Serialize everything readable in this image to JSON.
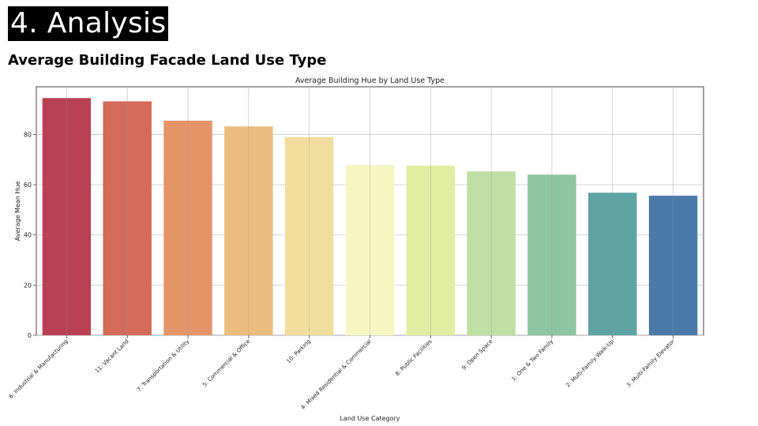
{
  "slide": {
    "title": "4. Analysis",
    "subtitle": "Average Building Facade Land Use Type"
  },
  "chart_data": {
    "type": "bar",
    "title": "Average Building Hue by Land Use Type",
    "xlabel": "Land Use Category",
    "ylabel": "Average Mean Hue",
    "categories": [
      "6: Industrial & Manufacturing",
      "11: Vacant Land",
      "7: Transportation & Utility",
      "5: Commercial & Office",
      "10: Parking",
      "4: Mixed Residential & Commercial",
      "8: Public Facilities",
      "9: Open Space",
      "1: One & Two Family",
      "2: Multi-Family Walk-Up",
      "3: Multi-Family Elevator"
    ],
    "values": [
      94.5,
      93.2,
      85.5,
      83.2,
      79.0,
      67.8,
      67.6,
      65.3,
      64.0,
      56.8,
      55.6
    ],
    "colors": [
      "#b84154",
      "#d46b5a",
      "#e39468",
      "#eabd7f",
      "#f1de9e",
      "#f7f6c2",
      "#e2eda4",
      "#bfdfa4",
      "#8dc6a1",
      "#5ea3a2",
      "#4a7aa8"
    ],
    "yticks": [
      0,
      20,
      40,
      60,
      80
    ],
    "ylim": [
      0,
      99
    ],
    "grid": true
  }
}
